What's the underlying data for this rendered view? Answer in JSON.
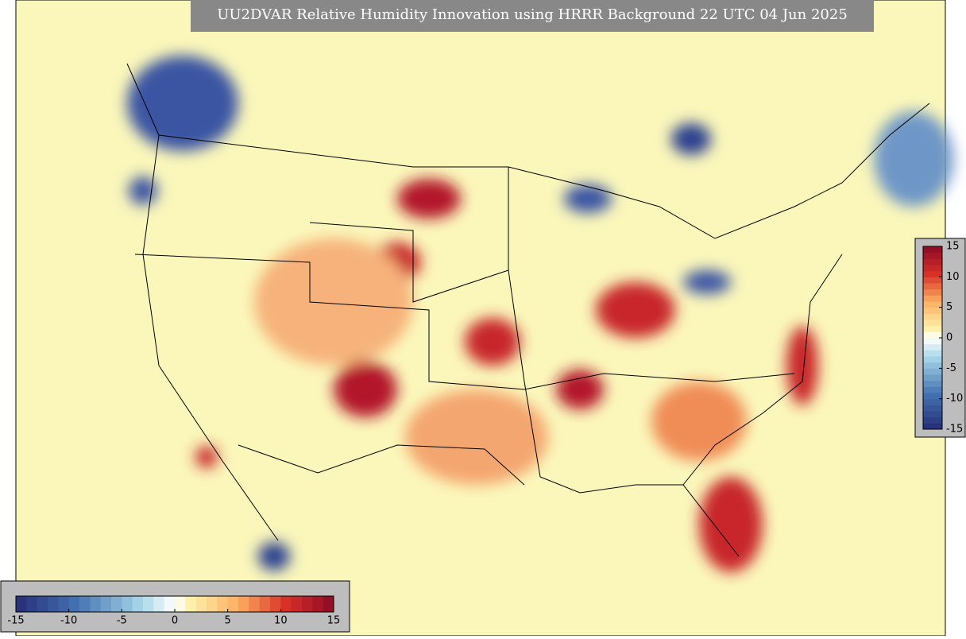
{
  "title": "UU2DVAR Relative Humidity Innovation using HRRR Background 22 UTC 04 Jun 2025",
  "colorbar_bottom": {
    "ticks": [
      -15,
      -10,
      -5,
      0,
      5,
      10,
      15
    ]
  },
  "colorbar_right": {
    "ticks": [
      15,
      10,
      5,
      0,
      -5,
      -10,
      -15
    ]
  }
}
